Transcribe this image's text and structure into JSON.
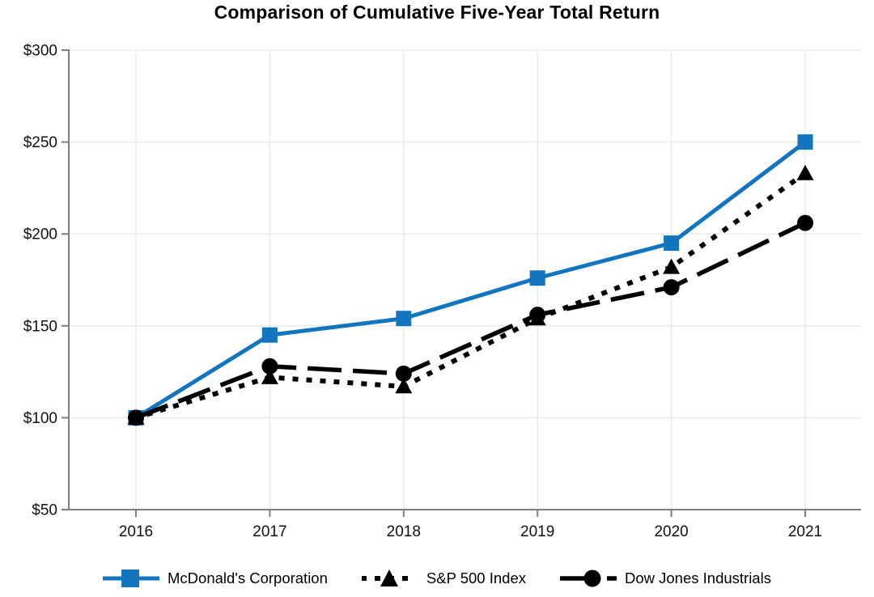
{
  "title": "Comparison of Cumulative Five-Year Total Return",
  "chart_data": {
    "type": "line",
    "categories": [
      "2016",
      "2017",
      "2018",
      "2019",
      "2020",
      "2021"
    ],
    "series": [
      {
        "name": "McDonald's Corporation",
        "values": [
          100,
          145,
          154,
          176,
          195,
          250
        ],
        "color": "#1275BD",
        "line_style": "solid",
        "marker": "square"
      },
      {
        "name": "S&P 500 Index",
        "values": [
          100,
          122,
          117,
          154,
          182,
          233
        ],
        "color": "#000000",
        "line_style": "dotted",
        "marker": "triangle"
      },
      {
        "name": "Dow Jones Industrials",
        "values": [
          100,
          128,
          124,
          156,
          171,
          206
        ],
        "color": "#000000",
        "line_style": "dashed",
        "marker": "circle"
      }
    ],
    "title": "Comparison of Cumulative Five-Year Total Return",
    "xlabel": "",
    "ylabel": "",
    "ylim": [
      50,
      300
    ],
    "y_tick_step": 50,
    "y_tick_prefix": "$",
    "grid": true,
    "legend_position": "bottom"
  },
  "colors": {
    "accent_blue": "#1275BD",
    "axis": "#7F7F7F",
    "grid": "#EBEBEB",
    "text": "#000000"
  }
}
